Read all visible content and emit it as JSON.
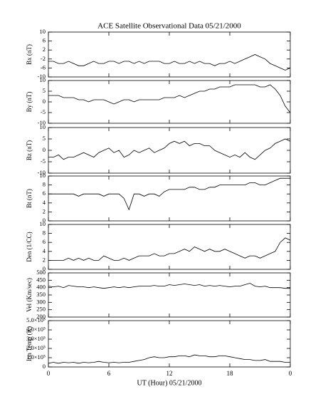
{
  "chart_data": {
    "type": "line",
    "title": "ACE Satellite Observational Data  05/21/2000",
    "xlabel": "UT (Hour)  05/21/2000",
    "x": [
      0,
      0.5,
      1,
      1.5,
      2,
      2.5,
      3,
      3.5,
      4,
      4.5,
      5,
      5.5,
      6,
      6.5,
      7,
      7.5,
      8,
      8.5,
      9,
      9.5,
      10,
      10.5,
      11,
      11.5,
      12,
      12.5,
      13,
      13.5,
      14,
      14.5,
      15,
      15.5,
      16,
      16.5,
      17,
      17.5,
      18,
      18.5,
      19,
      19.5,
      20,
      20.5,
      21,
      21.5,
      22,
      22.5,
      23,
      23.5,
      24
    ],
    "xlim": [
      0,
      24
    ],
    "xticks": [
      0,
      6,
      12,
      18,
      {
        "value": 24,
        "label": "0"
      }
    ],
    "color": "#000000",
    "panels": [
      {
        "ylabel": "Bx (nT)",
        "ylim": [
          -10,
          10
        ],
        "yticks": [
          -10,
          -6,
          -2,
          2,
          6,
          10
        ],
        "values": [
          -3,
          -3,
          -4,
          -4,
          -3,
          -4,
          -5,
          -5,
          -4,
          -3,
          -4,
          -4,
          -3,
          -3,
          -4,
          -3,
          -3,
          -4,
          -3,
          -4,
          -3,
          -3,
          -3,
          -4,
          -4,
          -3,
          -4,
          -4,
          -3,
          -4,
          -3,
          -4,
          -4,
          -5,
          -4,
          -4,
          -3,
          -4,
          -3,
          -2,
          -1,
          0,
          -1,
          -2,
          -4,
          -5,
          -6,
          -7,
          -6
        ]
      },
      {
        "ylabel": "By (nT)",
        "ylim": [
          -10,
          10
        ],
        "yticks": [
          -10,
          -5,
          0,
          5,
          10
        ],
        "values": [
          3,
          3,
          3,
          2,
          2,
          2,
          1,
          1,
          0,
          1,
          1,
          1,
          0,
          -1,
          0,
          1,
          1,
          0,
          1,
          1,
          1,
          1,
          1,
          2,
          2,
          2,
          3,
          2,
          3,
          4,
          5,
          5,
          6,
          6,
          7,
          7,
          7,
          8,
          8,
          8,
          8,
          8,
          7,
          7,
          8,
          6,
          3,
          -2,
          -5
        ]
      },
      {
        "ylabel": "Bz (nT)",
        "ylim": [
          -10,
          10
        ],
        "yticks": [
          -10,
          -5,
          0,
          5,
          10
        ],
        "values": [
          -3,
          -3,
          -2,
          -4,
          -3,
          -3,
          -2,
          -1,
          -2,
          -3,
          -1,
          0,
          1,
          -1,
          0,
          -3,
          -2,
          0,
          -1,
          0,
          1,
          -1,
          0,
          1,
          3,
          4,
          3,
          4,
          2,
          3,
          3,
          2,
          2,
          0,
          -1,
          -2,
          -3,
          -2,
          -3,
          -1,
          -3,
          -4,
          -2,
          0,
          1,
          3,
          4,
          5,
          4
        ]
      },
      {
        "ylabel": "Bt (nT)",
        "ylim": [
          0,
          10
        ],
        "yticks": [
          0,
          2,
          4,
          6,
          8,
          10
        ],
        "values": [
          6,
          6,
          6,
          6,
          6,
          6,
          5.5,
          6,
          6,
          6,
          6,
          5.5,
          6,
          6,
          6,
          5,
          2.5,
          6,
          6,
          5.5,
          6,
          6,
          5.5,
          6.5,
          7,
          7,
          7,
          7,
          7.5,
          7.5,
          7,
          7,
          7.5,
          7.5,
          8,
          8,
          8,
          8,
          8,
          8,
          8.5,
          8.5,
          8,
          8,
          8.5,
          9,
          9.5,
          9.5,
          9.5
        ]
      },
      {
        "ylabel": "Den (1/CC)",
        "ylim": [
          0,
          10
        ],
        "yticks": [
          0,
          2,
          4,
          6,
          8,
          10
        ],
        "values": [
          2,
          2,
          2,
          2,
          2.5,
          2,
          2.5,
          2,
          2.5,
          2,
          2,
          3,
          2.5,
          2,
          2,
          2.5,
          2,
          2.5,
          3,
          3,
          3,
          3.5,
          3,
          3,
          3.5,
          3.5,
          4,
          4.5,
          4,
          5,
          4.5,
          4,
          4.5,
          4,
          4,
          4.5,
          4,
          3.5,
          3,
          2.5,
          3,
          3,
          2.5,
          3,
          3.5,
          4,
          6,
          7,
          6.5
        ]
      },
      {
        "ylabel": "Vel (Km/sec)",
        "ylim": [
          200,
          500
        ],
        "yticks": [
          200,
          250,
          300,
          350,
          400,
          450,
          500
        ],
        "values": [
          410,
          405,
          410,
          400,
          415,
          410,
          405,
          405,
          400,
          405,
          400,
          395,
          400,
          405,
          400,
          405,
          400,
          405,
          410,
          410,
          410,
          415,
          410,
          410,
          420,
          415,
          420,
          425,
          420,
          415,
          420,
          410,
          415,
          410,
          415,
          410,
          405,
          410,
          410,
          420,
          430,
          410,
          405,
          410,
          400,
          400,
          400,
          395,
          395
        ]
      },
      {
        "ylabel": "Ion Temp (K)",
        "ylim": [
          0,
          500000
        ],
        "yticks": [
          0,
          {
            "value": 100000,
            "label": "1.0×10⁵"
          },
          {
            "value": 200000,
            "label": "2.0×10⁵"
          },
          {
            "value": 300000,
            "label": "3.0×10⁵"
          },
          {
            "value": 400000,
            "label": "4.0×10⁵"
          },
          {
            "value": 500000,
            "label": "5.0×10⁵"
          }
        ],
        "values": [
          40000,
          50000,
          40000,
          50000,
          45000,
          50000,
          40000,
          50000,
          45000,
          50000,
          60000,
          50000,
          45000,
          50000,
          45000,
          50000,
          50000,
          60000,
          70000,
          80000,
          100000,
          110000,
          100000,
          100000,
          110000,
          110000,
          120000,
          120000,
          110000,
          130000,
          120000,
          120000,
          110000,
          110000,
          120000,
          120000,
          110000,
          100000,
          90000,
          80000,
          80000,
          70000,
          70000,
          80000,
          60000,
          60000,
          60000,
          50000,
          50000
        ]
      }
    ]
  }
}
